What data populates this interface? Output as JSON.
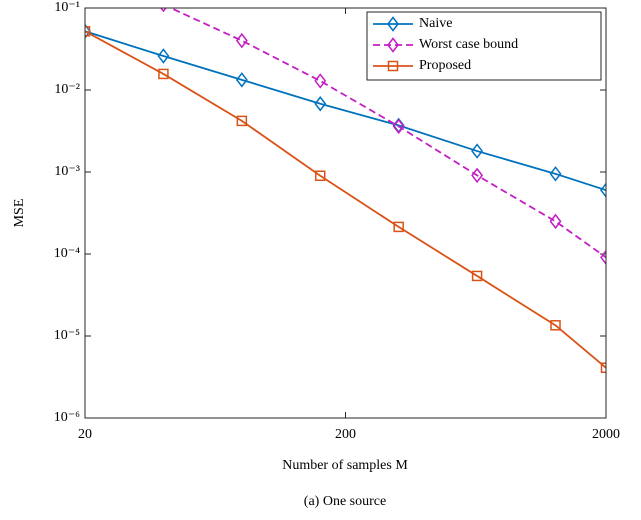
{
  "chart_data": {
    "type": "line",
    "xlabel": "Number of samples M",
    "ylabel": "MSE",
    "caption": "(a) One source",
    "x": [
      20,
      40,
      80,
      160,
      320,
      640,
      1280,
      2000
    ],
    "xlim": [
      20,
      2000
    ],
    "xticks": [
      20,
      200,
      2000
    ],
    "xscale": "log",
    "ylim": [
      1e-06,
      0.1
    ],
    "yscale": "log",
    "yticks": [
      {
        "value": 1e-06,
        "label": "10⁻⁶"
      },
      {
        "value": 1e-05,
        "label": "10⁻⁵"
      },
      {
        "value": 0.0001,
        "label": "10⁻⁴"
      },
      {
        "value": 0.001,
        "label": "10⁻³"
      },
      {
        "value": 0.01,
        "label": "10⁻²"
      },
      {
        "value": 0.1,
        "label": "10⁻¹"
      }
    ],
    "legend": "upper right",
    "series": [
      {
        "name": "Naive",
        "color": "#0072bd",
        "marker": "diamond",
        "line_style": "solid",
        "values": [
          0.052,
          0.026,
          0.0133,
          0.0068,
          0.0037,
          0.0018,
          0.00095,
          0.0006
        ]
      },
      {
        "name": "Worst case bound",
        "color": "#c41ec4",
        "marker": "diamond",
        "line_style": "dashed",
        "values": [
          null,
          0.11,
          0.04,
          0.0129,
          0.0036,
          0.00091,
          0.00025,
          9.1e-05
        ]
      },
      {
        "name": "Proposed",
        "color": "#d95319",
        "marker": "square",
        "line_style": "solid",
        "values": [
          0.052,
          0.0157,
          0.0042,
          0.0009,
          0.000214,
          5.4e-05,
          1.35e-05,
          4.1e-06
        ]
      }
    ]
  }
}
